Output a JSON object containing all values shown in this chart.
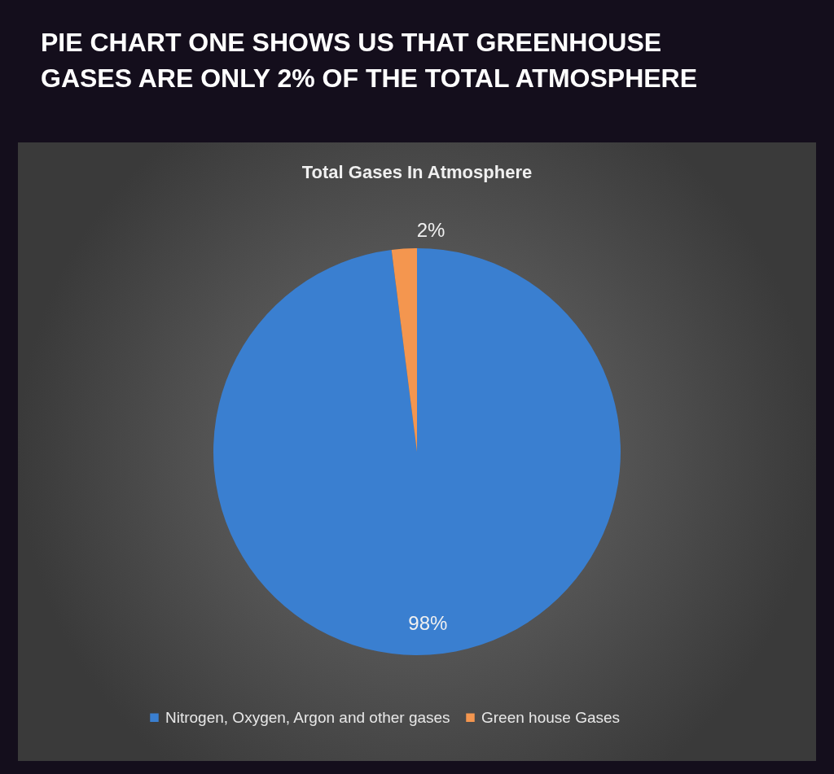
{
  "chart_data": {
    "type": "pie",
    "title": "Total Gases In Atmosphere",
    "annotations": [
      "PIE CHART ONE SHOWS US THAT GREENHOUSE GASES ARE ONLY 2% OF THE TOTAL ATMOSPHERE"
    ],
    "categories": [
      "Nitrogen, Oxygen, Argon and other gases",
      "Green house Gases"
    ],
    "values": [
      98,
      2
    ],
    "colors": [
      "#3a7fd0",
      "#f4964f"
    ],
    "value_labels": [
      "98%",
      "2%"
    ],
    "legend": "bottom"
  }
}
